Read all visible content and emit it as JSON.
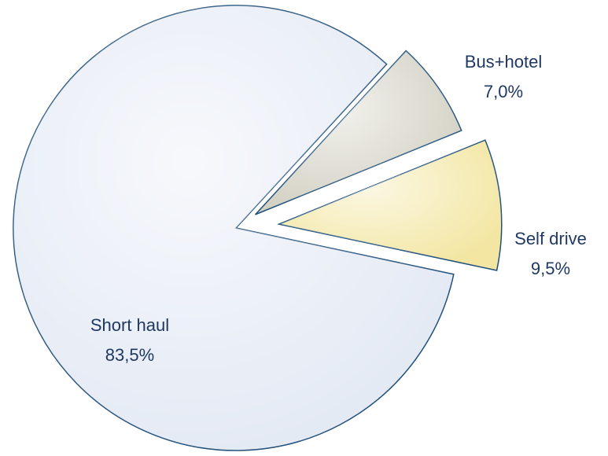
{
  "chart_data": {
    "type": "pie",
    "categories": [
      "Short haul",
      "Bus+hotel",
      "Self drive"
    ],
    "values": [
      83.5,
      7.0,
      9.5
    ],
    "value_labels": [
      "83,5%",
      "7,0%",
      "9,5%"
    ],
    "colors": [
      "#e3e9f4",
      "#d2d0c2",
      "#f3e6a2"
    ],
    "edge_color": "#1f4e79"
  }
}
